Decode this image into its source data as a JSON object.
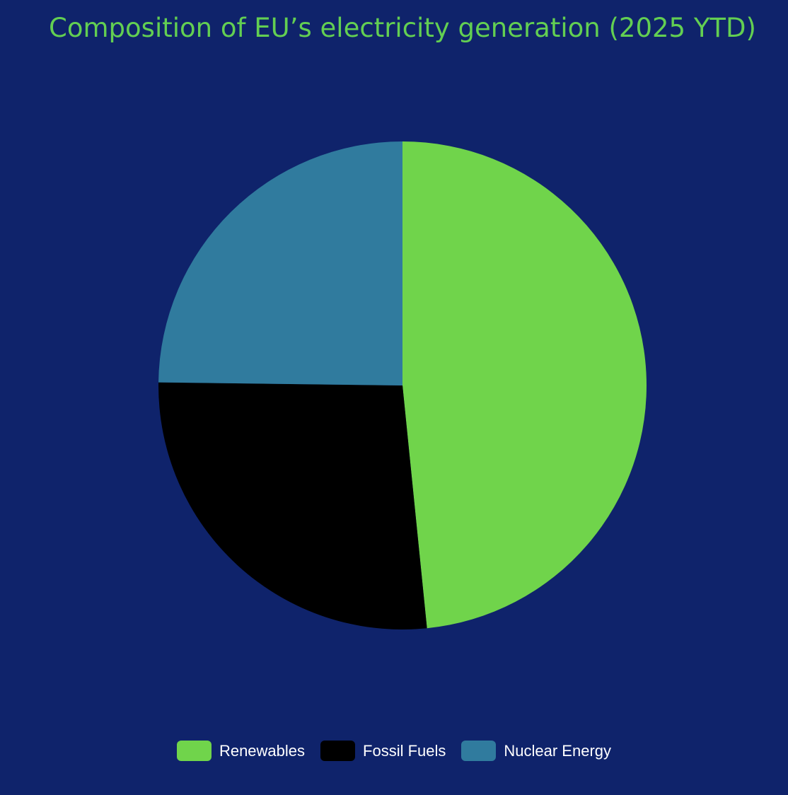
{
  "chart_data": {
    "type": "pie",
    "title": "Composition of EU’s electricity generation (2025 YTD)",
    "categories": [
      "Renewables",
      "Fossil Fuels",
      "Nuclear Energy"
    ],
    "values": [
      48.4,
      26.8,
      24.8
    ],
    "colors": [
      "#70d44b",
      "#000000",
      "#307b9e"
    ],
    "legend": "bottom"
  },
  "colors": {
    "background": "#0f236b",
    "title": "#63cf52",
    "legend_text": "#ffffff"
  }
}
